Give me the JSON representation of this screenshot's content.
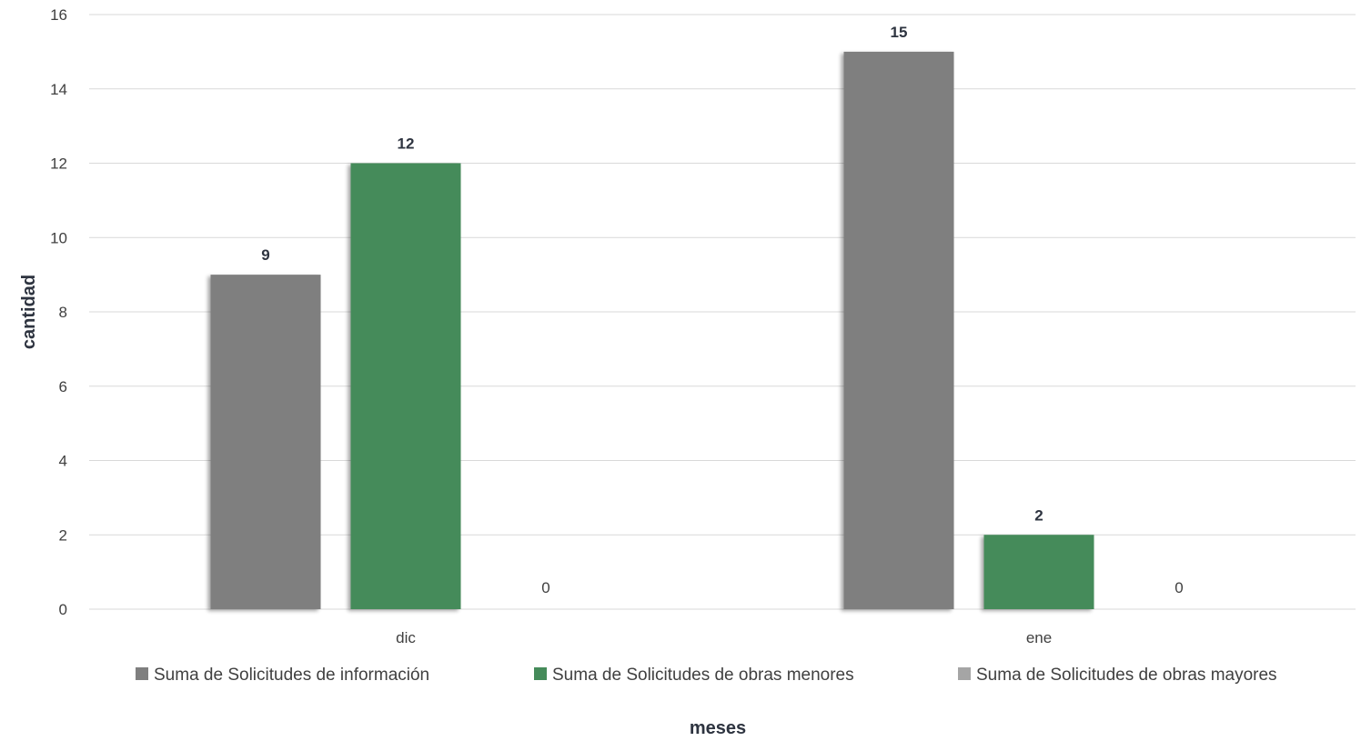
{
  "chart_data": {
    "type": "bar",
    "title": "",
    "xlabel": "meses",
    "ylabel": "cantidad",
    "categories": [
      "dic",
      "ene"
    ],
    "series": [
      {
        "name": "Suma de Solicitudes de información",
        "values": [
          9,
          15
        ],
        "color": "#7f7f7f"
      },
      {
        "name": "Suma de Solicitudes de obras menores",
        "values": [
          12,
          2
        ],
        "color": "#458b5a"
      },
      {
        "name": "Suma de Solicitudes de obras mayores",
        "values": [
          0,
          0
        ],
        "color": "#a5a5a5"
      }
    ],
    "ylim": [
      0,
      16
    ],
    "yticks": [
      "0",
      "2",
      "4",
      "6",
      "8",
      "10",
      "12",
      "14",
      "16"
    ],
    "grid": true,
    "legend_position": "bottom",
    "data_labels": true
  }
}
